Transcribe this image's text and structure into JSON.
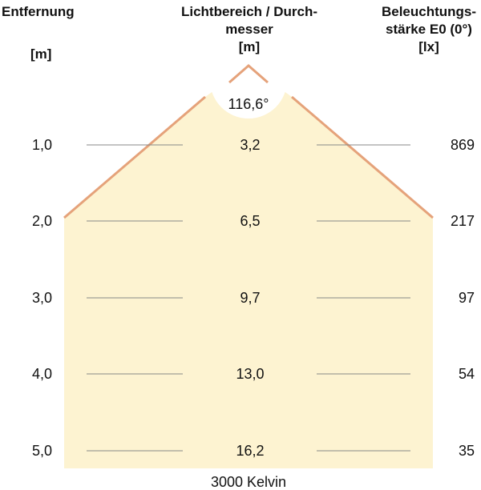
{
  "headers": {
    "distance": {
      "line1": "Entfernung",
      "unit": "[m]"
    },
    "diameter": {
      "line1": "Lichtbereich / Durch-",
      "line2": "messer",
      "unit": "[m]"
    },
    "illuminance": {
      "line1": "Beleuchtungs-",
      "line2": "stärke E0 (0°)",
      "unit": "[lx]"
    }
  },
  "beam_angle": "116,6°",
  "rows": [
    {
      "distance": "1,0",
      "diameter": "3,2",
      "illuminance": "869"
    },
    {
      "distance": "2,0",
      "diameter": "6,5",
      "illuminance": "217"
    },
    {
      "distance": "3,0",
      "diameter": "9,7",
      "illuminance": "97"
    },
    {
      "distance": "4,0",
      "diameter": "13,0",
      "illuminance": "54"
    },
    {
      "distance": "5,0",
      "diameter": "16,2",
      "illuminance": "35"
    }
  ],
  "footer": "3000 Kelvin",
  "colors": {
    "cone_fill": "#fdf3d1",
    "cone_edge": "#e5a27a",
    "grid_line": "#888888"
  }
}
